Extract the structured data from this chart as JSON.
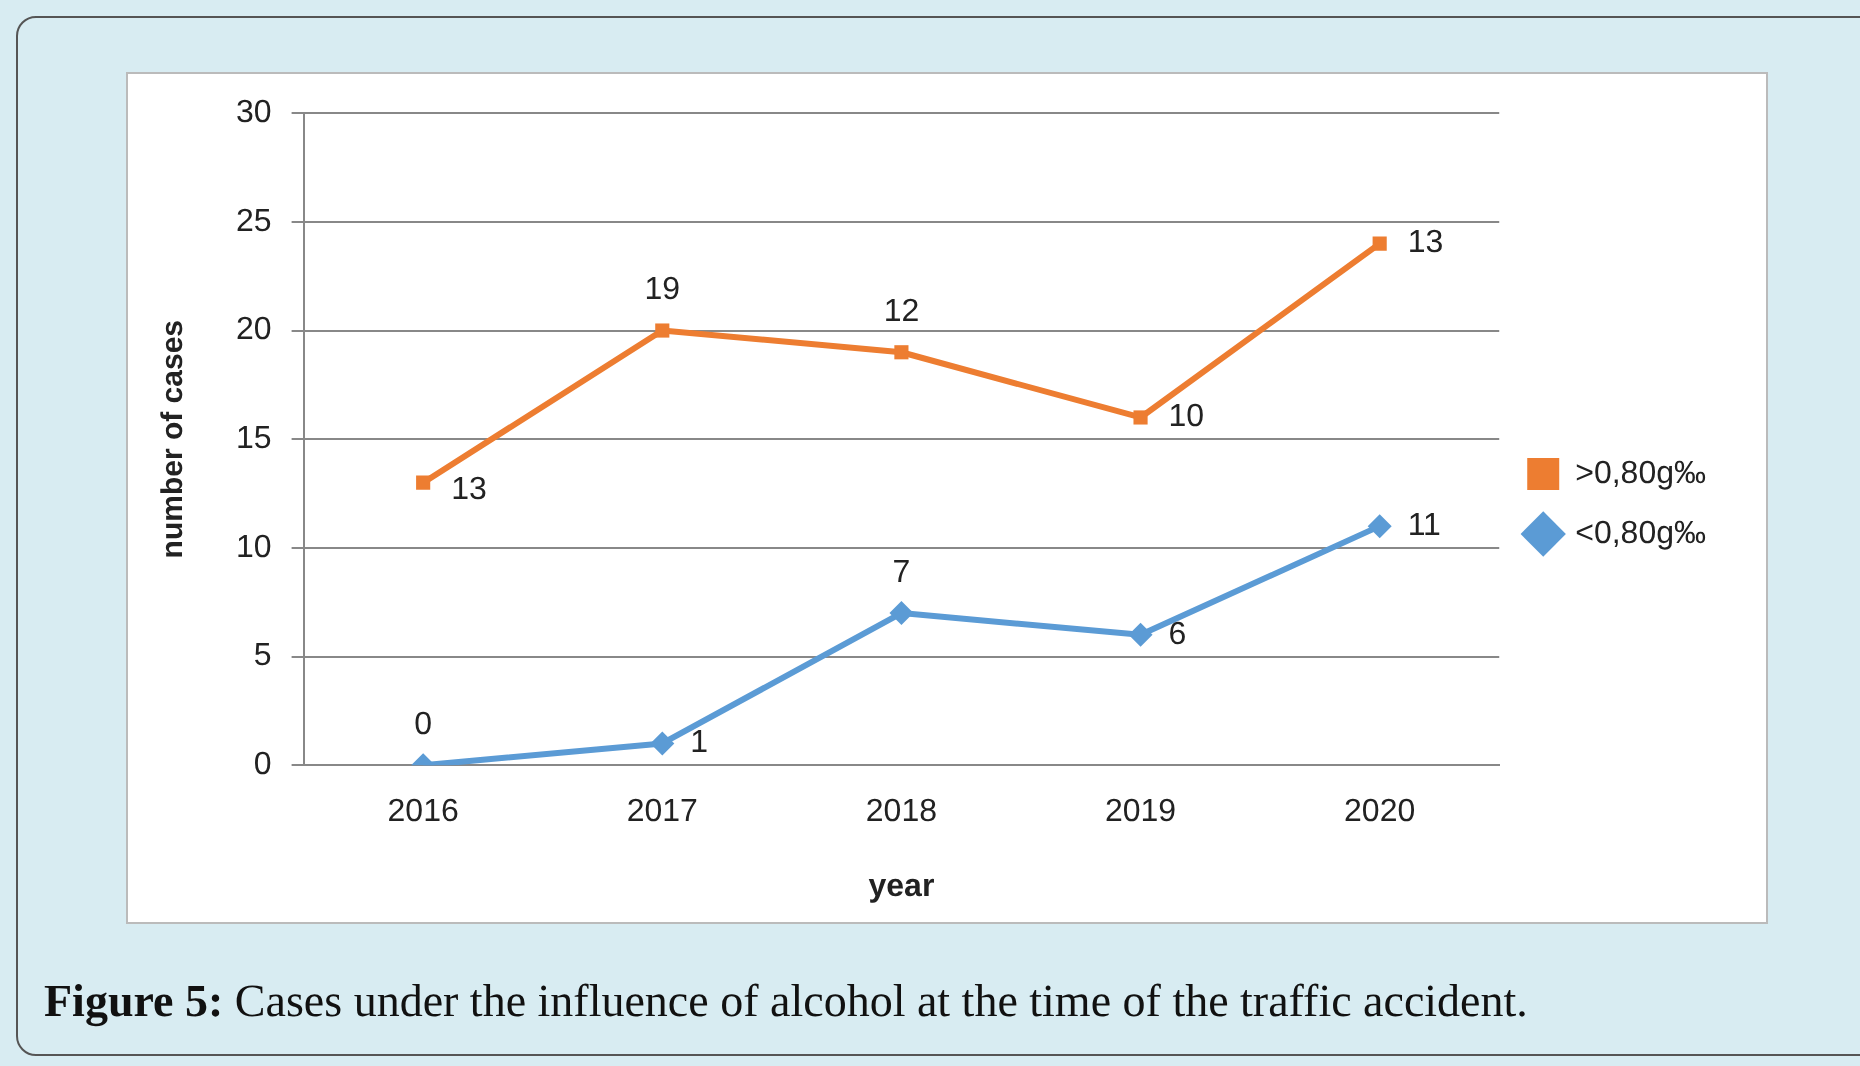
{
  "chart_data": {
    "type": "line",
    "xlabel": "year",
    "ylabel": "number of cases",
    "categories": [
      "2016",
      "2017",
      "2018",
      "2019",
      "2020"
    ],
    "series": [
      {
        "name": ">0,80g‰",
        "color": "#ed7d31",
        "marker": "square",
        "values": [
          13,
          20,
          19,
          16,
          24
        ]
      },
      {
        "name": "<0,80g‰",
        "color": "#5b9bd5",
        "marker": "diamond",
        "values": [
          0,
          1,
          7,
          6,
          11
        ],
        "value_labels": [
          "0",
          "1",
          "7",
          "6",
          "11"
        ]
      }
    ],
    "ylim": [
      0,
      30
    ],
    "yticks": [
      0,
      5,
      10,
      15,
      20,
      25,
      30
    ],
    "grid": "y",
    "legend": "right",
    "line_style": "solid",
    "annotations": [
      {
        "text": "13",
        "x": "2016",
        "y": 13
      },
      {
        "text": "19",
        "x": "2017",
        "y": 20
      },
      {
        "text": "12",
        "x": "2018",
        "y": 19
      },
      {
        "text": "10",
        "x": "2019",
        "y": 16
      },
      {
        "text": "13",
        "x": "2020",
        "y": 24
      },
      "Figure 5: Cases under the influence of alcohol at the time of the traffic accident."
    ]
  }
}
